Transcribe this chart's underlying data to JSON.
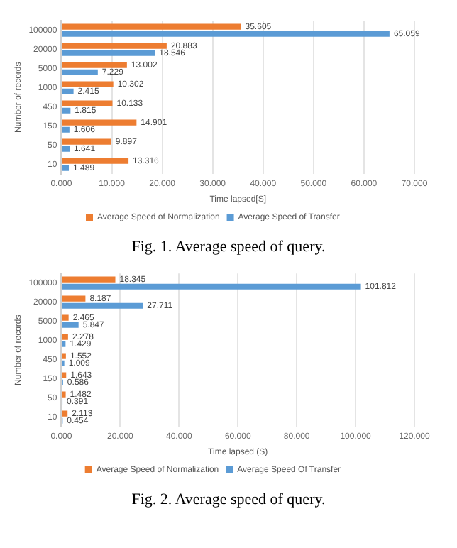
{
  "chart_data": [
    {
      "type": "bar",
      "orientation": "horizontal",
      "categories": [
        "100000",
        "20000",
        "5000",
        "1000",
        "450",
        "150",
        "50",
        "10"
      ],
      "series": [
        {
          "name": "Average Speed of Normalization",
          "color": "#ed7d31",
          "values": [
            35.605,
            20.883,
            13.002,
            10.302,
            10.133,
            14.901,
            9.897,
            13.316
          ]
        },
        {
          "name": "Average Speed of Transfer",
          "color": "#5b9bd5",
          "values": [
            65.059,
            18.546,
            7.229,
            2.415,
            1.815,
            1.606,
            1.641,
            1.489
          ]
        }
      ],
      "xlim": [
        0,
        70
      ],
      "xticks": [
        {
          "value": 0,
          "label": "0.000"
        },
        {
          "value": 10,
          "label": "10.000"
        },
        {
          "value": 20,
          "label": "20.000"
        },
        {
          "value": 30,
          "label": "30.000"
        },
        {
          "value": 40,
          "label": "40.000"
        },
        {
          "value": 50,
          "label": "50.000"
        },
        {
          "value": 60,
          "label": "60.000"
        },
        {
          "value": 70,
          "label": "70.000"
        }
      ],
      "xlabel": "Time lapsed[S]",
      "ylabel": "Number of records",
      "grid": "x",
      "legend": "bottom",
      "data_labels": true,
      "annotations": [
        "Fig. 1. Average speed of query."
      ]
    },
    {
      "type": "bar",
      "orientation": "horizontal",
      "categories": [
        "100000",
        "20000",
        "5000",
        "1000",
        "450",
        "150",
        "50",
        "10"
      ],
      "series": [
        {
          "name": "Average Speed of Normalization",
          "color": "#ed7d31",
          "values": [
            18.345,
            8.187,
            2.465,
            2.278,
            1.552,
            1.643,
            1.482,
            2.113
          ]
        },
        {
          "name": "Average Speed Of Transfer",
          "color": "#5b9bd5",
          "values": [
            101.812,
            27.711,
            5.847,
            1.429,
            1.009,
            0.586,
            0.391,
            0.454
          ]
        }
      ],
      "xlim": [
        0,
        120
      ],
      "xticks": [
        {
          "value": 0,
          "label": "0.000"
        },
        {
          "value": 20,
          "label": "20.000"
        },
        {
          "value": 40,
          "label": "40.000"
        },
        {
          "value": 60,
          "label": "60.000"
        },
        {
          "value": 80,
          "label": "80.000"
        },
        {
          "value": 100,
          "label": "100.000"
        },
        {
          "value": 120,
          "label": "120.000"
        }
      ],
      "xlabel": "Time lapsed (S)",
      "ylabel": "Number of records",
      "grid": "x",
      "legend": "bottom",
      "data_labels": true,
      "annotations": [
        "Fig. 2. Average speed of query."
      ]
    }
  ]
}
